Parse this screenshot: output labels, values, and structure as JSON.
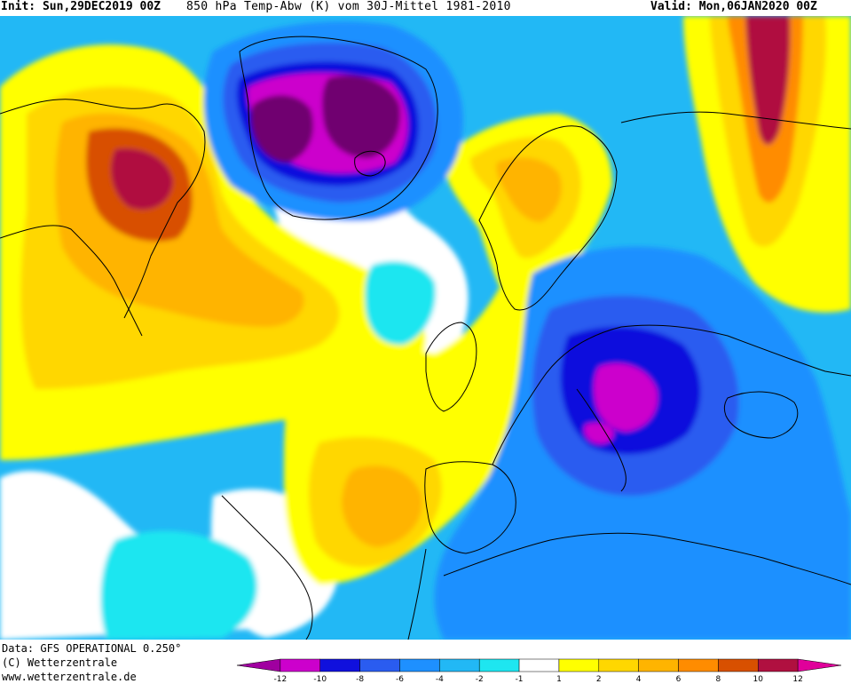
{
  "header": {
    "init": "Init: Sun,29DEC2019 00Z",
    "title": "850 hPa Temp-Abw (K) vom 30J-Mittel 1981-2010",
    "valid": "Valid: Mon,06JAN2020 00Z"
  },
  "footer": {
    "data_source": "Data: GFS OPERATIONAL 0.250°",
    "copyright": "(C) Wetterzentrale",
    "website": "www.wetterzentrale.de"
  },
  "legend": {
    "ticks": [
      "-12",
      "-10",
      "-8",
      "-6",
      "-4",
      "-2",
      "-1",
      "1",
      "2",
      "4",
      "6",
      "8",
      "10",
      "12"
    ],
    "colors": [
      "#a000a0",
      "#cc00cc",
      "#1010dd",
      "#2a5cf0",
      "#1e90ff",
      "#22b8f5",
      "#1ee6f0",
      "#ffffff",
      "#ffff00",
      "#ffd700",
      "#ffb400",
      "#ff8c00",
      "#d85000",
      "#b01040",
      "#e0009a"
    ]
  },
  "map": {
    "colors": {
      "ocean_neutral": "#ffffff",
      "warm1": "#ffff00",
      "warm2": "#ffd700",
      "warm3": "#ffb400",
      "warm4": "#ff8c00",
      "warm5": "#d85000",
      "warm6": "#b01040",
      "warm7": "#e0009a",
      "cold1": "#1ee6f0",
      "cold2": "#22b8f5",
      "cold3": "#1e90ff",
      "cold4": "#2a5cf0",
      "cold5": "#1010dd",
      "cold6": "#cc00cc",
      "cold7": "#700070",
      "coast": "#000000"
    }
  }
}
